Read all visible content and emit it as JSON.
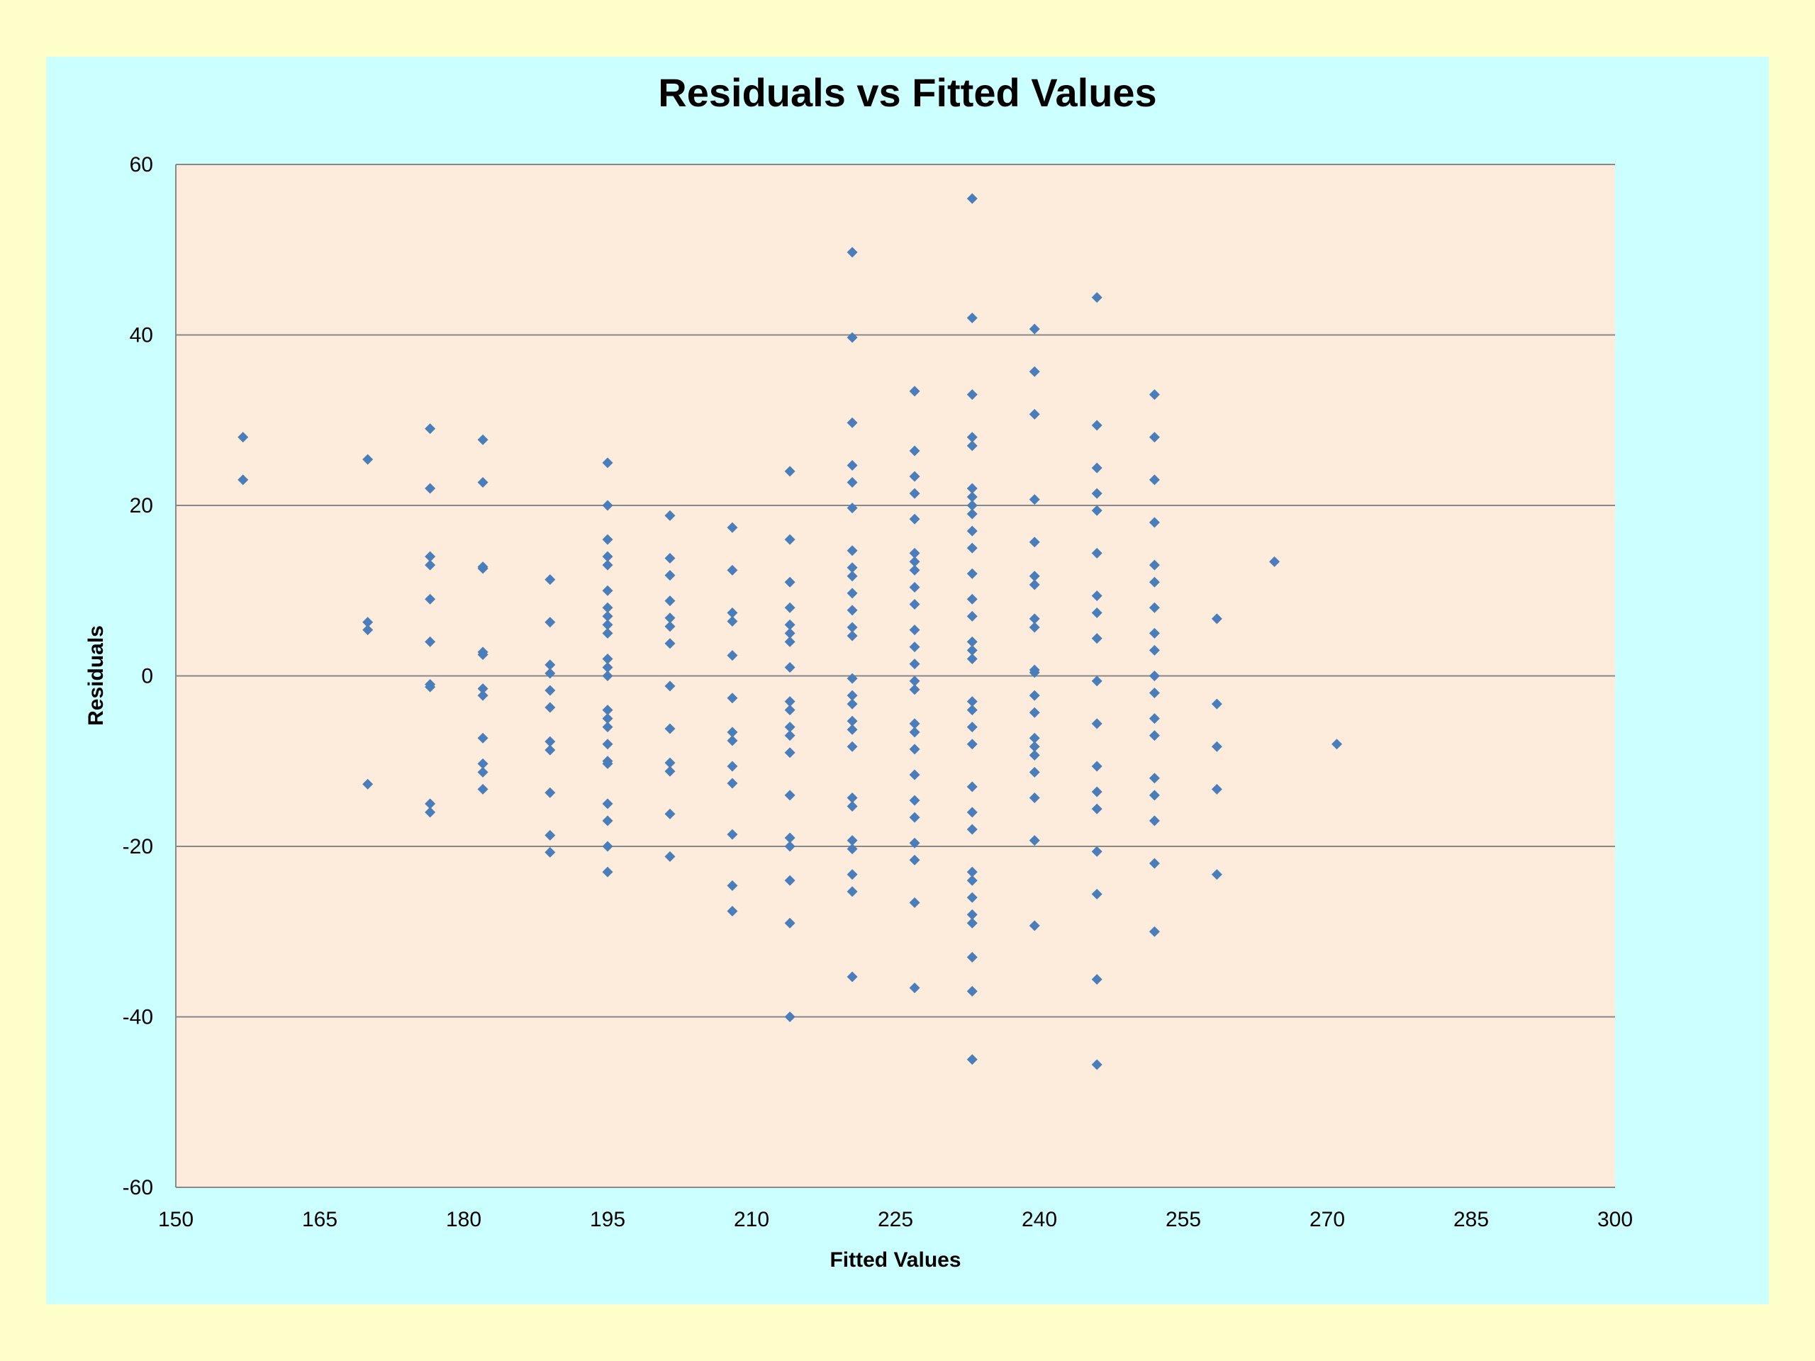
{
  "chart_data": {
    "type": "scatter",
    "title": "Residuals vs Fitted Values",
    "xlabel": "Fitted Values",
    "ylabel": "Residuals",
    "xlim": [
      150,
      300
    ],
    "ylim": [
      -60,
      60
    ],
    "x_ticks": [
      150,
      165,
      180,
      195,
      210,
      225,
      240,
      255,
      270,
      285,
      300
    ],
    "y_ticks": [
      60,
      40,
      20,
      0,
      -20,
      -40,
      -60
    ],
    "grid": "horizontal",
    "legend": "none",
    "colors": {
      "page_background": "#ffffcc",
      "chart_background": "#ccffff",
      "plot_background": "#fdebdc",
      "marker": "#4a7ebb",
      "gridline": "#888888"
    },
    "series": [
      {
        "marker": "diamond",
        "points": [
          [
            157,
            28
          ],
          [
            157,
            23
          ],
          [
            170,
            25.4
          ],
          [
            170,
            6.3
          ],
          [
            170,
            5.4
          ],
          [
            170,
            -12.7
          ],
          [
            176.5,
            29
          ],
          [
            176.5,
            22
          ],
          [
            176.5,
            14
          ],
          [
            176.5,
            13
          ],
          [
            176.5,
            9
          ],
          [
            176.5,
            4
          ],
          [
            176.5,
            -1
          ],
          [
            176.5,
            -1.3
          ],
          [
            176.5,
            -15
          ],
          [
            176.5,
            -16
          ],
          [
            182,
            27.7
          ],
          [
            182,
            22.7
          ],
          [
            182,
            12.8
          ],
          [
            182,
            12.6
          ],
          [
            182,
            2.8
          ],
          [
            182,
            2.5
          ],
          [
            182,
            -1.5
          ],
          [
            182,
            -2.3
          ],
          [
            182,
            -7.3
          ],
          [
            182,
            -10.3
          ],
          [
            182,
            -11.3
          ],
          [
            182,
            -13.3
          ],
          [
            189,
            11.3
          ],
          [
            189,
            6.3
          ],
          [
            189,
            1.3
          ],
          [
            189,
            0.3
          ],
          [
            189,
            -1.7
          ],
          [
            189,
            -3.7
          ],
          [
            189,
            -7.7
          ],
          [
            189,
            -8.7
          ],
          [
            189,
            -13.7
          ],
          [
            189,
            -18.7
          ],
          [
            189,
            -20.7
          ],
          [
            195,
            25
          ],
          [
            195,
            20
          ],
          [
            195,
            16
          ],
          [
            195,
            14
          ],
          [
            195,
            13
          ],
          [
            195,
            10
          ],
          [
            195,
            8
          ],
          [
            195,
            7
          ],
          [
            195,
            6
          ],
          [
            195,
            5
          ],
          [
            195,
            2
          ],
          [
            195,
            1
          ],
          [
            195,
            0
          ],
          [
            195,
            -4
          ],
          [
            195,
            -5
          ],
          [
            195,
            -6
          ],
          [
            195,
            -8
          ],
          [
            195,
            -10
          ],
          [
            195,
            -10.3
          ],
          [
            195,
            -15
          ],
          [
            195,
            -17
          ],
          [
            195,
            -20
          ],
          [
            195,
            -23
          ],
          [
            201.5,
            18.8
          ],
          [
            201.5,
            13.8
          ],
          [
            201.5,
            11.8
          ],
          [
            201.5,
            8.8
          ],
          [
            201.5,
            6.8
          ],
          [
            201.5,
            5.8
          ],
          [
            201.5,
            3.8
          ],
          [
            201.5,
            -1.2
          ],
          [
            201.5,
            -6.2
          ],
          [
            201.5,
            -10.2
          ],
          [
            201.5,
            -11.2
          ],
          [
            201.5,
            -16.2
          ],
          [
            201.5,
            -21.2
          ],
          [
            208,
            17.4
          ],
          [
            208,
            12.4
          ],
          [
            208,
            7.4
          ],
          [
            208,
            6.4
          ],
          [
            208,
            2.4
          ],
          [
            208,
            -2.6
          ],
          [
            208,
            -6.6
          ],
          [
            208,
            -7.6
          ],
          [
            208,
            -10.6
          ],
          [
            208,
            -12.6
          ],
          [
            208,
            -18.6
          ],
          [
            208,
            -24.6
          ],
          [
            208,
            -27.6
          ],
          [
            214,
            24
          ],
          [
            214,
            16
          ],
          [
            214,
            11
          ],
          [
            214,
            8
          ],
          [
            214,
            6
          ],
          [
            214,
            5
          ],
          [
            214,
            4
          ],
          [
            214,
            1
          ],
          [
            214,
            -3
          ],
          [
            214,
            -4
          ],
          [
            214,
            -6
          ],
          [
            214,
            -7
          ],
          [
            214,
            -9
          ],
          [
            214,
            -14
          ],
          [
            214,
            -19
          ],
          [
            214,
            -20
          ],
          [
            214,
            -24
          ],
          [
            214,
            -29
          ],
          [
            214,
            -40
          ],
          [
            220.5,
            49.7
          ],
          [
            220.5,
            39.7
          ],
          [
            220.5,
            29.7
          ],
          [
            220.5,
            24.7
          ],
          [
            220.5,
            22.7
          ],
          [
            220.5,
            19.7
          ],
          [
            220.5,
            14.7
          ],
          [
            220.5,
            12.7
          ],
          [
            220.5,
            11.7
          ],
          [
            220.5,
            9.7
          ],
          [
            220.5,
            7.7
          ],
          [
            220.5,
            5.7
          ],
          [
            220.5,
            4.7
          ],
          [
            220.5,
            -0.3
          ],
          [
            220.5,
            -2.3
          ],
          [
            220.5,
            -3.3
          ],
          [
            220.5,
            -5.3
          ],
          [
            220.5,
            -6.3
          ],
          [
            220.5,
            -8.3
          ],
          [
            220.5,
            -14.3
          ],
          [
            220.5,
            -15.3
          ],
          [
            220.5,
            -19.3
          ],
          [
            220.5,
            -20.3
          ],
          [
            220.5,
            -23.3
          ],
          [
            220.5,
            -25.3
          ],
          [
            220.5,
            -35.3
          ],
          [
            227,
            33.4
          ],
          [
            227,
            26.4
          ],
          [
            227,
            23.4
          ],
          [
            227,
            21.4
          ],
          [
            227,
            18.4
          ],
          [
            227,
            14.4
          ],
          [
            227,
            13.4
          ],
          [
            227,
            12.4
          ],
          [
            227,
            10.4
          ],
          [
            227,
            8.4
          ],
          [
            227,
            5.4
          ],
          [
            227,
            3.4
          ],
          [
            227,
            1.4
          ],
          [
            227,
            -0.6
          ],
          [
            227,
            -1.6
          ],
          [
            227,
            -5.6
          ],
          [
            227,
            -6.6
          ],
          [
            227,
            -8.6
          ],
          [
            227,
            -11.6
          ],
          [
            227,
            -14.6
          ],
          [
            227,
            -16.6
          ],
          [
            227,
            -19.6
          ],
          [
            227,
            -21.6
          ],
          [
            227,
            -26.6
          ],
          [
            227,
            -36.6
          ],
          [
            233,
            56
          ],
          [
            233,
            42
          ],
          [
            233,
            33
          ],
          [
            233,
            28
          ],
          [
            233,
            27
          ],
          [
            233,
            22
          ],
          [
            233,
            21
          ],
          [
            233,
            20
          ],
          [
            233,
            19
          ],
          [
            233,
            17
          ],
          [
            233,
            15
          ],
          [
            233,
            12
          ],
          [
            233,
            9
          ],
          [
            233,
            7
          ],
          [
            233,
            4
          ],
          [
            233,
            3
          ],
          [
            233,
            2
          ],
          [
            233,
            -3
          ],
          [
            233,
            -4
          ],
          [
            233,
            -6
          ],
          [
            233,
            -8
          ],
          [
            233,
            -13
          ],
          [
            233,
            -16
          ],
          [
            233,
            -18
          ],
          [
            233,
            -23
          ],
          [
            233,
            -24
          ],
          [
            233,
            -26
          ],
          [
            233,
            -28
          ],
          [
            233,
            -29
          ],
          [
            233,
            -33
          ],
          [
            233,
            -37
          ],
          [
            233,
            -45
          ],
          [
            239.5,
            40.7
          ],
          [
            239.5,
            35.7
          ],
          [
            239.5,
            30.7
          ],
          [
            239.5,
            20.7
          ],
          [
            239.5,
            15.7
          ],
          [
            239.5,
            11.7
          ],
          [
            239.5,
            10.7
          ],
          [
            239.5,
            6.7
          ],
          [
            239.5,
            5.7
          ],
          [
            239.5,
            0.7
          ],
          [
            239.5,
            0.4
          ],
          [
            239.5,
            -2.3
          ],
          [
            239.5,
            -4.3
          ],
          [
            239.5,
            -7.3
          ],
          [
            239.5,
            -8.3
          ],
          [
            239.5,
            -9.3
          ],
          [
            239.5,
            -11.3
          ],
          [
            239.5,
            -14.3
          ],
          [
            239.5,
            -19.3
          ],
          [
            239.5,
            -29.3
          ],
          [
            246,
            44.4
          ],
          [
            246,
            29.4
          ],
          [
            246,
            24.4
          ],
          [
            246,
            21.4
          ],
          [
            246,
            19.4
          ],
          [
            246,
            14.4
          ],
          [
            246,
            9.4
          ],
          [
            246,
            7.4
          ],
          [
            246,
            4.4
          ],
          [
            246,
            -0.6
          ],
          [
            246,
            -5.6
          ],
          [
            246,
            -10.6
          ],
          [
            246,
            -13.6
          ],
          [
            246,
            -15.6
          ],
          [
            246,
            -20.6
          ],
          [
            246,
            -25.6
          ],
          [
            246,
            -35.6
          ],
          [
            246,
            -45.6
          ],
          [
            252,
            33
          ],
          [
            252,
            28
          ],
          [
            252,
            23
          ],
          [
            252,
            18
          ],
          [
            252,
            13
          ],
          [
            252,
            11
          ],
          [
            252,
            8
          ],
          [
            252,
            5
          ],
          [
            252,
            3
          ],
          [
            252,
            0
          ],
          [
            252,
            -2
          ],
          [
            252,
            -5
          ],
          [
            252,
            -7
          ],
          [
            252,
            -12
          ],
          [
            252,
            -14
          ],
          [
            252,
            -17
          ],
          [
            252,
            -22
          ],
          [
            252,
            -30
          ],
          [
            258.5,
            6.7
          ],
          [
            258.5,
            -3.3
          ],
          [
            258.5,
            -8.3
          ],
          [
            258.5,
            -13.3
          ],
          [
            258.5,
            -23.3
          ],
          [
            264.5,
            13.4
          ],
          [
            271,
            -8
          ]
        ]
      }
    ]
  }
}
